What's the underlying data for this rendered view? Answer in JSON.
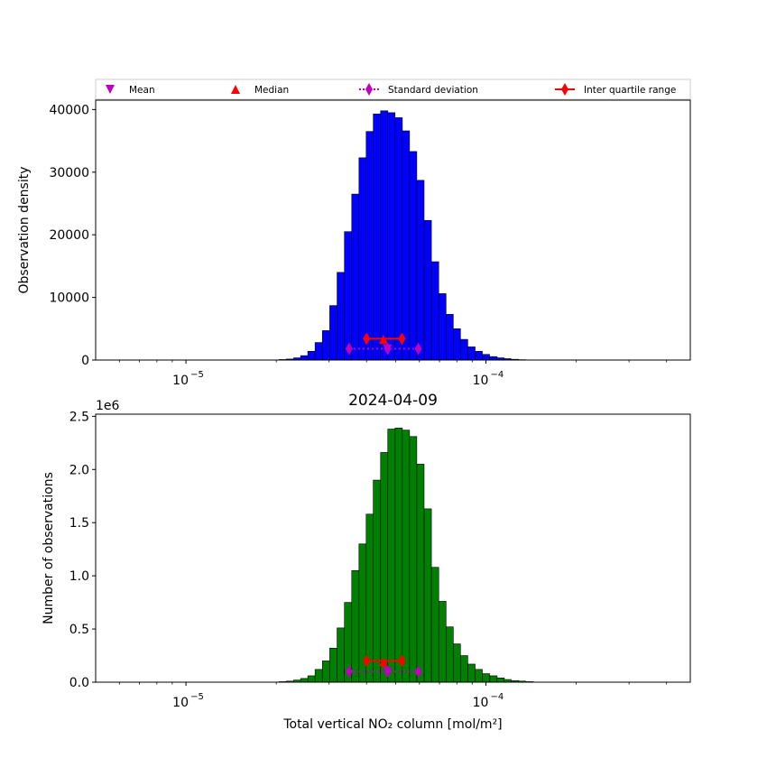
{
  "legend": {
    "placement": "top",
    "entries": [
      {
        "label": "Mean",
        "marker": "triangle-down",
        "color": "#bf00bf"
      },
      {
        "label": "Median",
        "marker": "triangle-up",
        "color": "#ff0000"
      },
      {
        "label": "Standard deviation",
        "marker": "diamond-dotted-line",
        "color": "#bf00bf"
      },
      {
        "label": "Inter quartile range",
        "marker": "diamond-solid-line",
        "color": "#ff0000"
      }
    ]
  },
  "chart_data": [
    {
      "type": "bar",
      "title": "",
      "ylabel": "Observation density",
      "xlabel": "",
      "xscale": "log",
      "xlim": [
        5e-06,
        0.00048
      ],
      "ylim": [
        0,
        41500
      ],
      "bar_color": "#0000ff",
      "edge_color": "#000000",
      "x_ticks": [
        {
          "value": 1e-05,
          "base": "10",
          "exp": "−5"
        },
        {
          "value": 0.0001,
          "base": "10",
          "exp": "−4"
        }
      ],
      "y_ticks": [
        "0",
        "10000",
        "20000",
        "30000",
        "40000"
      ],
      "y_tick_values": [
        0,
        10000,
        20000,
        30000,
        40000
      ],
      "bin_centers": [
        2.1e-05,
        2.22e-05,
        2.35e-05,
        2.48e-05,
        2.62e-05,
        2.77e-05,
        2.93e-05,
        3.1e-05,
        3.28e-05,
        3.47e-05,
        3.67e-05,
        3.88e-05,
        4.1e-05,
        4.33e-05,
        4.58e-05,
        4.84e-05,
        5.12e-05,
        5.41e-05,
        5.72e-05,
        6.05e-05,
        6.4e-05,
        6.77e-05,
        7.16e-05,
        7.57e-05,
        8e-05,
        8.46e-05,
        8.95e-05,
        9.46e-05,
        0.0001,
        0.000106,
        0.000112,
        0.000118,
        0.000125,
        0.000132,
        0.00014
      ],
      "values": [
        80,
        160,
        350,
        700,
        1400,
        2800,
        4700,
        8700,
        14000,
        20500,
        26500,
        32300,
        36500,
        39300,
        39800,
        39500,
        38700,
        36600,
        33300,
        28700,
        22300,
        15700,
        10600,
        7300,
        5000,
        3300,
        2100,
        1400,
        900,
        550,
        350,
        220,
        120,
        60,
        30
      ],
      "markers": {
        "mean": {
          "x": 4.7e-05,
          "y": 1800
        },
        "median": {
          "x": 4.55e-05,
          "y": 3300
        },
        "std_range": {
          "x": [
            3.5e-05,
            5.95e-05
          ],
          "y": 1800
        },
        "iqr_range": {
          "x": [
            4e-05,
            5.25e-05
          ],
          "y": 3400
        }
      }
    },
    {
      "type": "bar",
      "title": "2024-04-09",
      "ylabel": "Number of observations",
      "xlabel": "Total vertical NO₂ column [mol/m²]",
      "xscale": "log",
      "xlim": [
        5e-06,
        0.00048
      ],
      "ylim": [
        0,
        2.52
      ],
      "scale_text": "1e6",
      "bar_color": "#008000",
      "edge_color": "#000000",
      "x_ticks": [
        {
          "value": 1e-05,
          "base": "10",
          "exp": "−5"
        },
        {
          "value": 0.0001,
          "base": "10",
          "exp": "−4"
        }
      ],
      "y_ticks": [
        "0.0",
        "0.5",
        "1.0",
        "1.5",
        "2.0",
        "2.5"
      ],
      "y_tick_values": [
        0,
        0.5,
        1.0,
        1.5,
        2.0,
        2.5
      ],
      "bin_centers": [
        2.1e-05,
        2.22e-05,
        2.35e-05,
        2.48e-05,
        2.62e-05,
        2.77e-05,
        2.93e-05,
        3.1e-05,
        3.28e-05,
        3.47e-05,
        3.67e-05,
        3.88e-05,
        4.1e-05,
        4.33e-05,
        4.58e-05,
        4.84e-05,
        5.12e-05,
        5.41e-05,
        5.72e-05,
        6.05e-05,
        6.4e-05,
        6.77e-05,
        7.16e-05,
        7.57e-05,
        8e-05,
        8.46e-05,
        8.95e-05,
        9.46e-05,
        0.0001,
        0.000106,
        0.000112,
        0.000118,
        0.000125,
        0.000132,
        0.00014
      ],
      "values": [
        0.005,
        0.01,
        0.02,
        0.035,
        0.06,
        0.12,
        0.2,
        0.32,
        0.51,
        0.75,
        1.05,
        1.3,
        1.58,
        1.9,
        2.16,
        2.38,
        2.39,
        2.37,
        2.31,
        2.05,
        1.63,
        1.08,
        0.76,
        0.52,
        0.36,
        0.25,
        0.17,
        0.12,
        0.08,
        0.06,
        0.04,
        0.025,
        0.015,
        0.01,
        0.005
      ],
      "markers": {
        "mean": {
          "x": 4.7e-05,
          "y": 0.1
        },
        "median": {
          "x": 4.55e-05,
          "y": 0.19
        },
        "std_range": {
          "x": [
            3.5e-05,
            5.95e-05
          ],
          "y": 0.1
        },
        "iqr_range": {
          "x": [
            4e-05,
            5.25e-05
          ],
          "y": 0.2
        }
      }
    }
  ]
}
